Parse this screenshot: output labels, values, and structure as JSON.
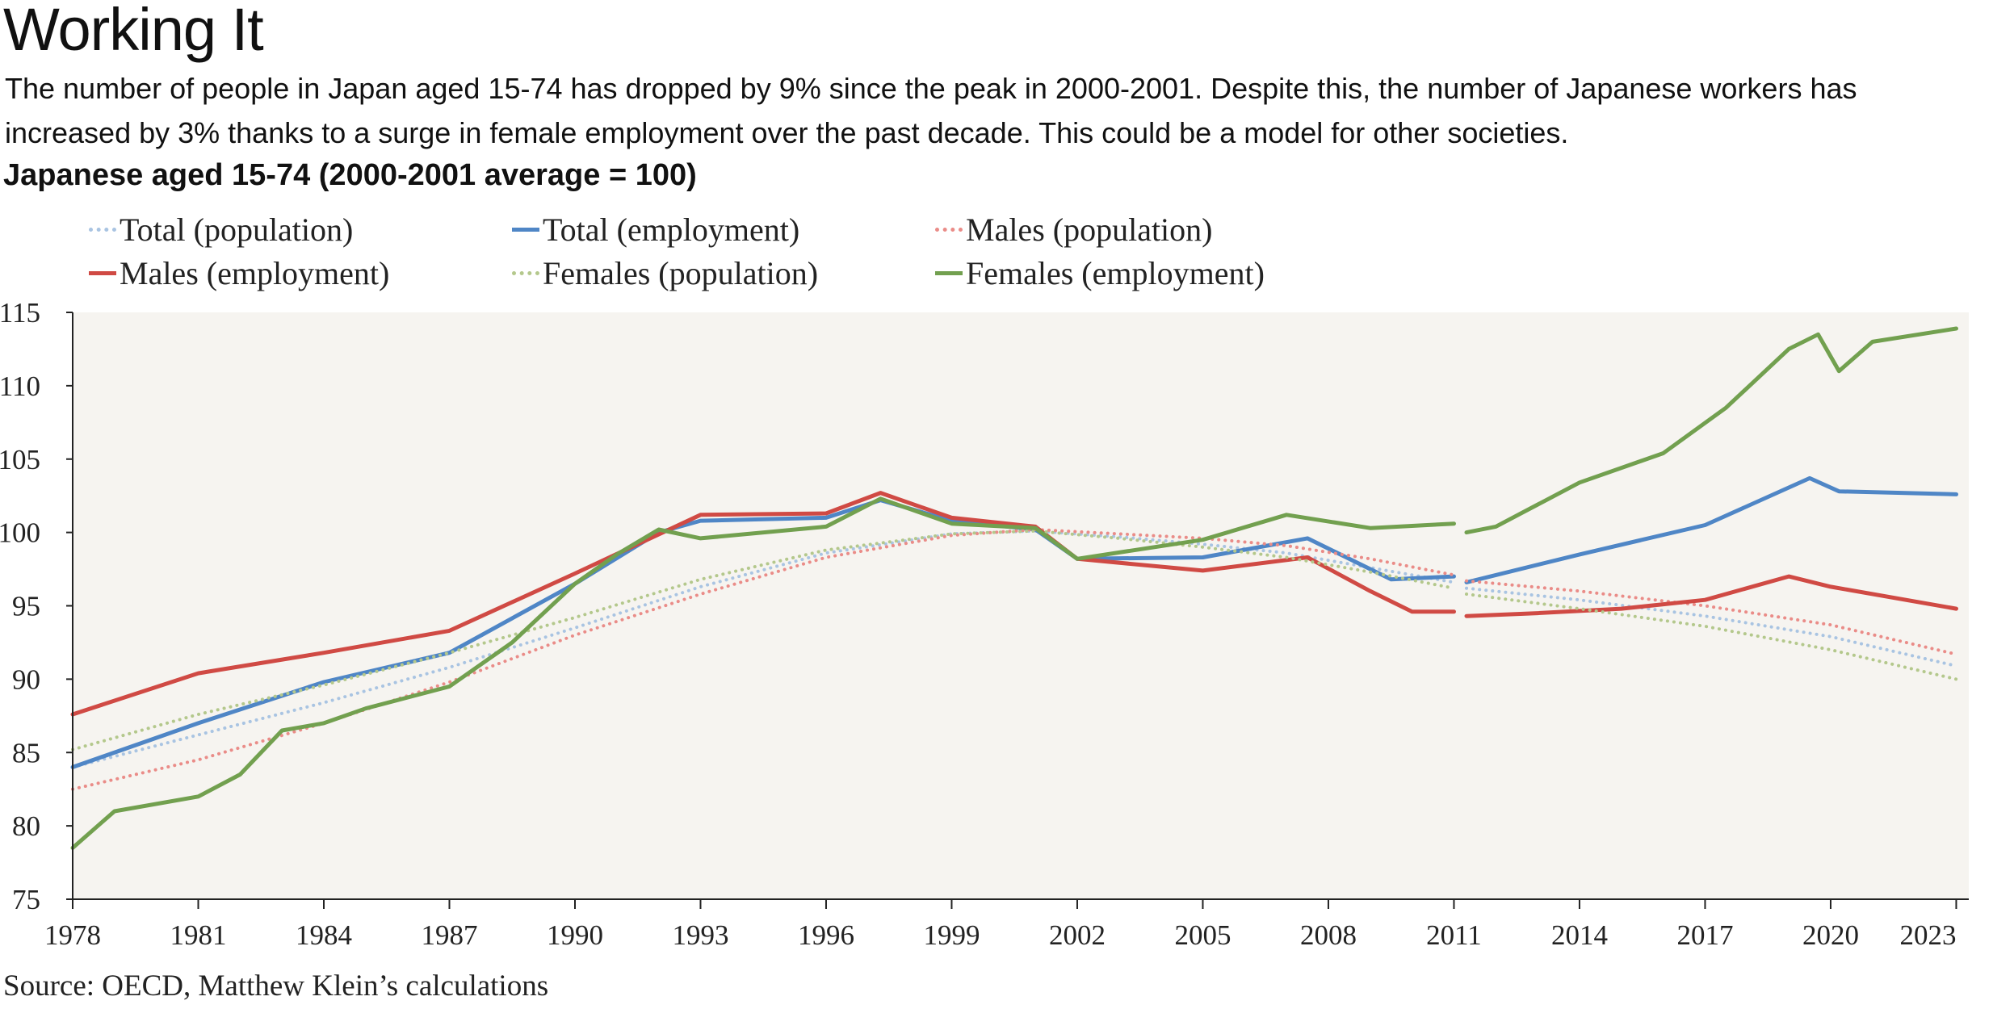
{
  "title": "Working It",
  "subtitle": "The number of people in Japan aged 15-74 has dropped by 9% since the peak in 2000-2001. Despite this, the number of Japanese workers has increased by 3% thanks to a surge in female employment over the past decade. This could be a model for other societies.",
  "source": "Source: OECD, Matthew Klein’s calculations",
  "chart_data": {
    "type": "line",
    "title": "Japanese aged 15-74 (2000-2001 average = 100)",
    "xlabel": "",
    "ylabel": "",
    "xlim": [
      1978,
      2023.3
    ],
    "ylim": [
      75,
      115
    ],
    "xticks": [
      "1978",
      "1981",
      "1984",
      "1987",
      "1990",
      "1993",
      "1996",
      "1999",
      "2002",
      "2005",
      "2008",
      "2011",
      "2014",
      "2017",
      "2020",
      "2023"
    ],
    "yticks": [
      "75",
      "80",
      "85",
      "90",
      "95",
      "100",
      "105",
      "110",
      "115"
    ],
    "grid": false,
    "legend_position": "top",
    "background": "#f6f4f0",
    "series": [
      {
        "name": "Total (population)",
        "color": "#a9c4e2",
        "style": "dotted",
        "x": [
          1978,
          1981,
          1984,
          1987,
          1990,
          1993,
          1996,
          1999,
          2001,
          2003,
          2005,
          2007,
          2009,
          2011,
          2011.3,
          2014,
          2017,
          2020,
          2023
        ],
        "y": [
          84.0,
          86.2,
          88.4,
          90.8,
          93.5,
          96.3,
          98.6,
          99.9,
          100.1,
          99.7,
          99.2,
          98.6,
          97.6,
          96.6,
          96.2,
          95.4,
          94.3,
          92.9,
          90.9
        ]
      },
      {
        "name": "Total (employment)",
        "color": "#4f86c6",
        "style": "solid",
        "x": [
          1978,
          1981,
          1984,
          1987,
          1990,
          1992,
          1993,
          1996,
          1997.3,
          1999,
          2001,
          2002,
          2005,
          2007.5,
          2009.5,
          2011,
          2011.3,
          2014,
          2017,
          2019.5,
          2020.2,
          2023
        ],
        "y": [
          84.0,
          87.0,
          89.8,
          91.8,
          96.5,
          100.0,
          100.8,
          101.0,
          102.2,
          100.8,
          100.2,
          98.2,
          98.3,
          99.6,
          96.8,
          97.0,
          96.6,
          98.5,
          100.5,
          103.7,
          102.8,
          102.6
        ]
      },
      {
        "name": "Males (population)",
        "color": "#ea8c88",
        "style": "dotted",
        "x": [
          1978,
          1981,
          1984,
          1987,
          1990,
          1993,
          1996,
          1999,
          2001,
          2003,
          2005,
          2007,
          2009,
          2011,
          2011.3,
          2014,
          2017,
          2020,
          2023
        ],
        "y": [
          82.5,
          84.5,
          87.0,
          89.8,
          93.0,
          95.8,
          98.3,
          99.8,
          100.2,
          99.9,
          99.6,
          99.1,
          98.2,
          97.1,
          96.7,
          96.0,
          95.0,
          93.7,
          91.7
        ]
      },
      {
        "name": "Males (employment)",
        "color": "#d04a44",
        "style": "solid",
        "x": [
          1978,
          1981,
          1984,
          1987,
          1990,
          1993,
          1996,
          1997.3,
          1999,
          2001,
          2002,
          2005,
          2007.5,
          2009,
          2010,
          2011,
          2011.3,
          2013,
          2015,
          2017,
          2019,
          2020,
          2023
        ],
        "y": [
          87.6,
          90.4,
          91.8,
          93.3,
          97.2,
          101.2,
          101.3,
          102.7,
          101.0,
          100.4,
          98.2,
          97.4,
          98.3,
          96.0,
          94.6,
          94.6,
          94.3,
          94.5,
          94.8,
          95.4,
          97.0,
          96.3,
          94.8
        ]
      },
      {
        "name": "Females (population)",
        "color": "#b4c88c",
        "style": "dotted",
        "x": [
          1978,
          1981,
          1984,
          1987,
          1990,
          1993,
          1996,
          1999,
          2001,
          2003,
          2005,
          2007,
          2009,
          2011,
          2011.3,
          2014,
          2017,
          2020,
          2023
        ],
        "y": [
          85.2,
          87.6,
          89.6,
          91.8,
          94.2,
          96.8,
          98.8,
          99.9,
          100.1,
          99.6,
          99.0,
          98.3,
          97.3,
          96.2,
          95.8,
          94.8,
          93.6,
          92.0,
          90.0
        ]
      },
      {
        "name": "Females (employment)",
        "color": "#72a04f",
        "style": "solid",
        "x": [
          1978,
          1979,
          1981,
          1982,
          1983,
          1984,
          1985,
          1987,
          1988.5,
          1990,
          1991,
          1992,
          1993,
          1996,
          1997.3,
          1999,
          2001,
          2002,
          2005,
          2007,
          2009,
          2011,
          2011.3,
          2012,
          2014,
          2016,
          2017.5,
          2019,
          2019.7,
          2020.2,
          2021,
          2023
        ],
        "y": [
          78.5,
          81.0,
          82.0,
          83.5,
          86.5,
          87.0,
          88.0,
          89.5,
          92.5,
          96.5,
          98.5,
          100.2,
          99.6,
          100.4,
          102.3,
          100.6,
          100.3,
          98.2,
          99.5,
          101.2,
          100.3,
          100.6,
          100.0,
          100.4,
          103.4,
          105.4,
          108.5,
          112.5,
          113.5,
          111.0,
          113.0,
          113.9
        ]
      }
    ]
  }
}
